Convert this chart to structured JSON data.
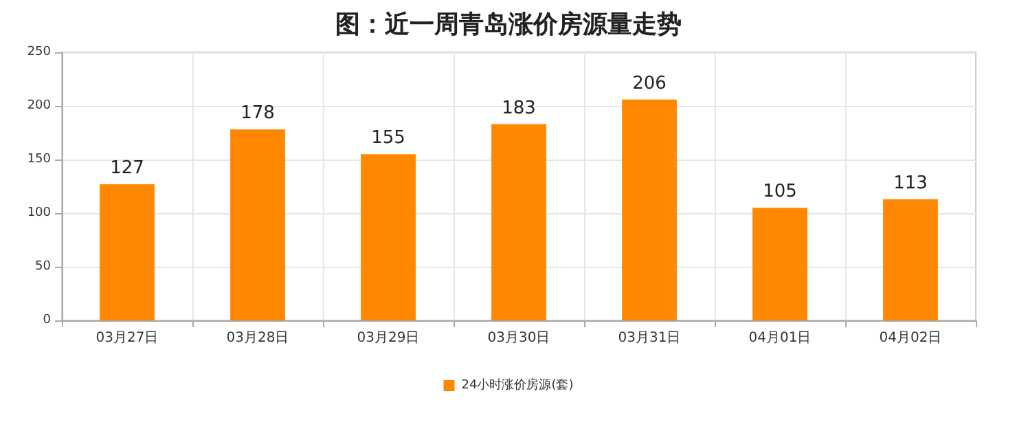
{
  "chart_data": {
    "type": "bar",
    "title": "图：近一周青岛涨价房源量走势",
    "categories": [
      "03月27日",
      "03月28日",
      "03月29日",
      "03月30日",
      "03月31日",
      "04月01日",
      "04月02日"
    ],
    "series": [
      {
        "name": "24小时涨价房源(套)",
        "color": "#ff8800",
        "values": [
          127,
          178,
          155,
          183,
          206,
          105,
          113
        ]
      }
    ],
    "ylim": [
      0,
      250
    ],
    "yticks": [
      0,
      50,
      100,
      150,
      200,
      250
    ],
    "grid": true,
    "legend": "bottom",
    "data_labels": true
  }
}
